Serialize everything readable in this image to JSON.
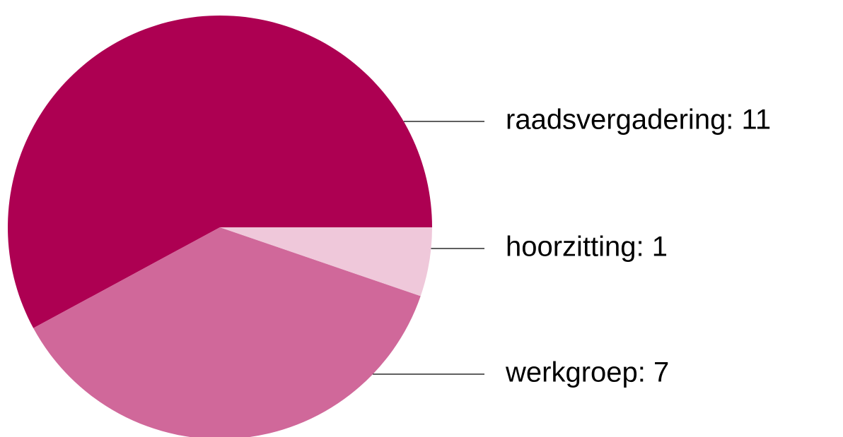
{
  "chart_data": {
    "type": "pie",
    "values": [
      11,
      7,
      1
    ],
    "value_labels": [
      "raadsvergadering: 11",
      "werkgroep: 7",
      "hoorzitting: 1"
    ],
    "colors": [
      "#ad0052",
      "#d0689a",
      "#efc8da"
    ]
  }
}
